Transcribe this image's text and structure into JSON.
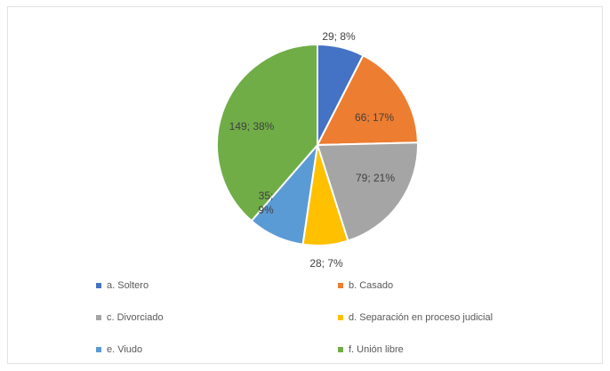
{
  "chart_data": {
    "type": "pie",
    "title": "",
    "slices": [
      {
        "name": "a. Soltero",
        "value": 29,
        "label": "29; 8%",
        "color": "#4472C4"
      },
      {
        "name": "b. Casado",
        "value": 66,
        "label": "66; 17%",
        "color": "#ED7D31"
      },
      {
        "name": "c. Divorciado",
        "value": 79,
        "label": "79; 21%",
        "color": "#A5A5A5"
      },
      {
        "name": "d. Separación en proceso judicial",
        "value": 28,
        "label": "28; 7%",
        "color": "#FFC000"
      },
      {
        "name": "e. Viudo",
        "value": 35,
        "label": "35; 9%",
        "label_lines": [
          "35;",
          "9%"
        ],
        "color": "#5B9BD5"
      },
      {
        "name": "f. Unión libre",
        "value": 149,
        "label": "149; 38%",
        "color": "#70AD47"
      }
    ],
    "legend": "bottom"
  }
}
